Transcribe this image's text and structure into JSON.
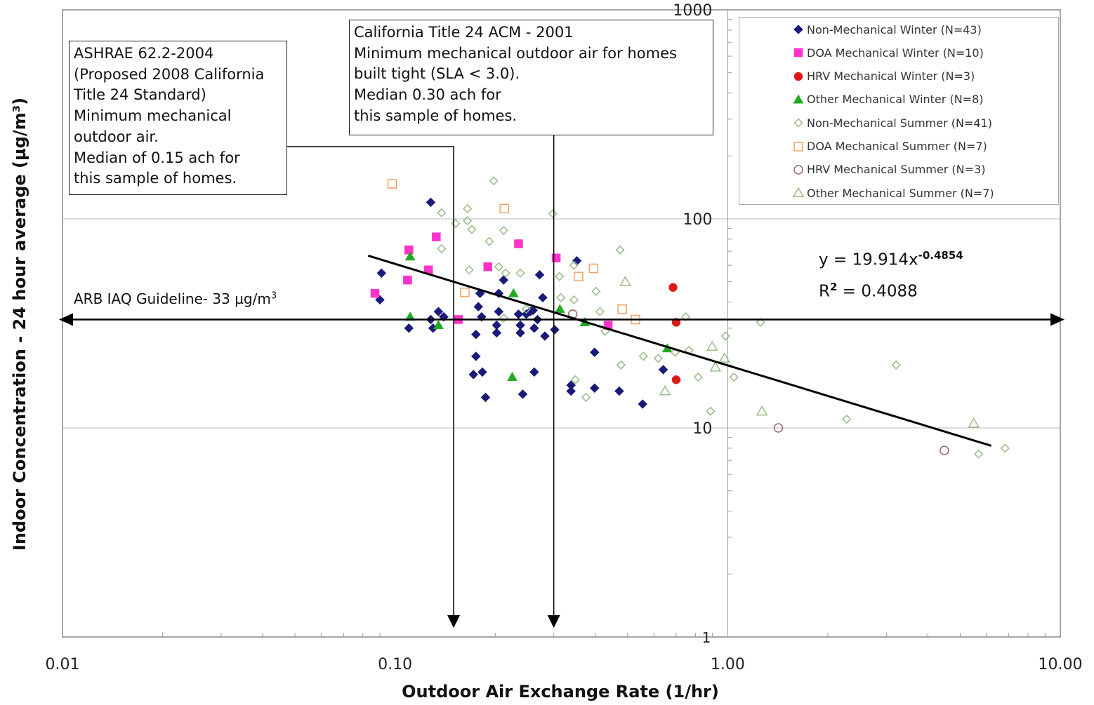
{
  "chart_data": {
    "type": "scatter",
    "xscale": "log",
    "yscale": "log",
    "xlim": [
      0.01,
      10
    ],
    "ylim": [
      1,
      1000
    ],
    "xticks": [
      "0.01",
      "0.10",
      "1.00",
      "10.00"
    ],
    "yticks": [
      "1",
      "10",
      "100",
      "1000"
    ],
    "xlabel": "Outdoor Air Exchange Rate (1/hr)",
    "ylabel": "Indoor Concentration - 24 hour average (µg/m³)",
    "grid": "major",
    "legend_position": "top-right",
    "series": [
      {
        "name": "Non-Mechanical Winter (N=43)",
        "marker": "diamond",
        "filled": true,
        "color": "#1a1a7a",
        "points": [
          [
            0.091,
            55
          ],
          [
            0.09,
            41
          ],
          [
            0.128,
            120
          ],
          [
            0.128,
            33
          ],
          [
            0.13,
            30
          ],
          [
            0.135,
            36
          ],
          [
            0.14,
            34
          ],
          [
            0.11,
            30
          ],
          [
            0.178,
            38
          ],
          [
            0.18,
            44
          ],
          [
            0.182,
            34
          ],
          [
            0.175,
            28
          ],
          [
            0.175,
            22
          ],
          [
            0.172,
            18
          ],
          [
            0.183,
            18.5
          ],
          [
            0.187,
            14
          ],
          [
            0.202,
            31
          ],
          [
            0.205,
            36
          ],
          [
            0.205,
            44
          ],
          [
            0.202,
            28.5
          ],
          [
            0.212,
            51
          ],
          [
            0.235,
            35
          ],
          [
            0.238,
            31
          ],
          [
            0.238,
            28.5
          ],
          [
            0.242,
            14.5
          ],
          [
            0.248,
            35
          ],
          [
            0.255,
            36
          ],
          [
            0.262,
            18.5
          ],
          [
            0.262,
            30
          ],
          [
            0.268,
            33
          ],
          [
            0.272,
            54
          ],
          [
            0.278,
            42
          ],
          [
            0.282,
            27.5
          ],
          [
            0.302,
            29.5
          ],
          [
            0.338,
            16
          ],
          [
            0.338,
            15
          ],
          [
            0.352,
            63
          ],
          [
            0.398,
            15.5
          ],
          [
            0.398,
            23
          ],
          [
            0.472,
            15
          ],
          [
            0.555,
            13
          ],
          [
            0.64,
            19
          ],
          [
            0.26,
            36.5
          ]
        ]
      },
      {
        "name": "DOA Mechanical Winter (N=10)",
        "marker": "square",
        "filled": true,
        "color": "#ff33cc",
        "points": [
          [
            0.087,
            44
          ],
          [
            0.109,
            51
          ],
          [
            0.11,
            71
          ],
          [
            0.126,
            57
          ],
          [
            0.133,
            82
          ],
          [
            0.155,
            33
          ],
          [
            0.19,
            59
          ],
          [
            0.235,
            76
          ],
          [
            0.305,
            65
          ],
          [
            0.437,
            31
          ]
        ]
      },
      {
        "name": "HRV Mechanical Winter (N=3)",
        "marker": "circle",
        "filled": true,
        "color": "#dd1a1a",
        "points": [
          [
            0.685,
            47
          ],
          [
            0.7,
            32
          ],
          [
            0.7,
            17
          ]
        ]
      },
      {
        "name": "Other Mechanical Winter (N=8)",
        "marker": "triangle",
        "filled": true,
        "color": "#22aa22",
        "points": [
          [
            0.111,
            66
          ],
          [
            0.111,
            34
          ],
          [
            0.135,
            31
          ],
          [
            0.227,
            44
          ],
          [
            0.225,
            17.5
          ],
          [
            0.313,
            37
          ],
          [
            0.372,
            32
          ],
          [
            0.658,
            24
          ]
        ]
      },
      {
        "name": "Non-Mechanical Summer (N=41)",
        "marker": "diamond",
        "filled": false,
        "color": "#99bb88",
        "points": [
          [
            0.138,
            107
          ],
          [
            0.138,
            72
          ],
          [
            0.152,
            95
          ],
          [
            0.165,
            112
          ],
          [
            0.165,
            98
          ],
          [
            0.17,
            89
          ],
          [
            0.167,
            57
          ],
          [
            0.192,
            78
          ],
          [
            0.198,
            152
          ],
          [
            0.212,
            88
          ],
          [
            0.205,
            59
          ],
          [
            0.215,
            55
          ],
          [
            0.212,
            33.5
          ],
          [
            0.238,
            55
          ],
          [
            0.248,
            37
          ],
          [
            0.298,
            106
          ],
          [
            0.312,
            53
          ],
          [
            0.315,
            42
          ],
          [
            0.345,
            60
          ],
          [
            0.345,
            41
          ],
          [
            0.348,
            17
          ],
          [
            0.375,
            14
          ],
          [
            0.402,
            45
          ],
          [
            0.413,
            36
          ],
          [
            0.428,
            29
          ],
          [
            0.478,
            20
          ],
          [
            0.475,
            71
          ],
          [
            0.558,
            22
          ],
          [
            0.618,
            21.5
          ],
          [
            0.695,
            23
          ],
          [
            0.748,
            34
          ],
          [
            0.765,
            23.5
          ],
          [
            0.815,
            17.5
          ],
          [
            0.888,
            12
          ],
          [
            0.985,
            27.5
          ],
          [
            1.045,
            17.5
          ],
          [
            1.255,
            32
          ],
          [
            2.28,
            11
          ],
          [
            3.21,
            20
          ],
          [
            5.68,
            7.5
          ],
          [
            6.82,
            8
          ]
        ]
      },
      {
        "name": "DOA Mechanical Summer (N=7)",
        "marker": "square",
        "filled": false,
        "color": "#f0a060",
        "points": [
          [
            0.098,
            147
          ],
          [
            0.162,
            44.5
          ],
          [
            0.213,
            112
          ],
          [
            0.356,
            53
          ],
          [
            0.395,
            58
          ],
          [
            0.482,
            37
          ],
          [
            0.528,
            33
          ]
        ]
      },
      {
        "name": "HRV Mechanical Summer (N=3)",
        "marker": "circle",
        "filled": false,
        "color": "#996666",
        "points": [
          [
            0.342,
            35
          ],
          [
            1.42,
            10
          ],
          [
            4.48,
            7.8
          ]
        ]
      },
      {
        "name": "Other Mechanical Summer (N=7)",
        "marker": "triangle",
        "filled": false,
        "color": "#99bb88",
        "points": [
          [
            0.492,
            50
          ],
          [
            0.648,
            15
          ],
          [
            0.898,
            24.5
          ],
          [
            0.918,
            19.5
          ],
          [
            0.978,
            21.5
          ],
          [
            1.268,
            12
          ],
          [
            5.49,
            10.5
          ]
        ]
      }
    ],
    "trendline": {
      "coef": 19.914,
      "exp": -0.4854,
      "x_from": 0.083,
      "x_to": 6.2
    },
    "reference_line": {
      "y": 33
    }
  },
  "annotations": {
    "ashrae": [
      "ASHRAE 62.2-2004",
      "(Proposed 2008 California",
      "Title 24 Standard)",
      "Minimum mechanical",
      "outdoor air.",
      "Median of 0.15 ach for",
      "this sample of homes."
    ],
    "ashrae_x": 0.15,
    "title24": [
      "California Title 24 ACM - 2001",
      "Minimum mechanical outdoor air for homes",
      "built tight (SLA < 3.0).",
      "Median 0.30 ach for",
      "this sample of homes."
    ],
    "title24_x": 0.3,
    "guideline_text": "ARB IAQ Guideline- 33 µg/m",
    "guideline_sup": "3",
    "equation_main": "y = 19.914x",
    "equation_exp": "-0.4854",
    "r2_main": "R",
    "r2_sup": "2",
    "r2_value": " = 0.4088"
  },
  "legend": {
    "items": [
      "Non-Mechanical Winter (N=43)",
      "DOA Mechanical Winter (N=10)",
      "HRV Mechanical Winter (N=3)",
      "Other Mechanical Winter (N=8)",
      "Non-Mechanical Summer (N=41)",
      "DOA Mechanical Summer (N=7)",
      "HRV Mechanical Summer (N=3)",
      "Other Mechanical Summer (N=7)"
    ]
  },
  "icons": {
    "diamond": "diamond-marker-icon",
    "square": "square-marker-icon",
    "circle": "circle-marker-icon",
    "triangle": "triangle-marker-icon",
    "arrow": "arrow-icon"
  }
}
